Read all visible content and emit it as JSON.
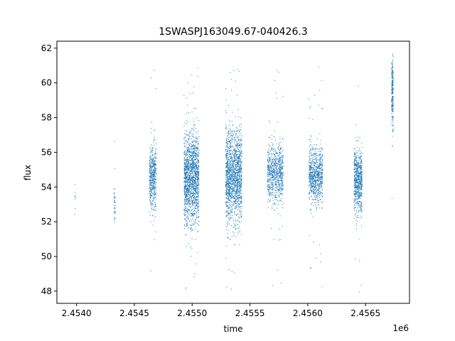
{
  "chart_data": {
    "type": "scatter",
    "title": "1SWASPJ163049.67-040426.3",
    "xlabel": "time",
    "ylabel": "flux",
    "x_offset_label": "1e6",
    "xlim": [
      2453830,
      2456880
    ],
    "ylim": [
      47.3,
      62.4
    ],
    "x_ticks": [
      2454000,
      2454500,
      2455000,
      2455500,
      2456000,
      2456500
    ],
    "x_tick_labels": [
      "2.4540",
      "2.4545",
      "2.4550",
      "2.4555",
      "2.4560",
      "2.4565"
    ],
    "y_ticks": [
      48,
      50,
      52,
      54,
      56,
      58,
      60,
      62
    ],
    "y_tick_labels": [
      "48",
      "50",
      "52",
      "54",
      "56",
      "58",
      "60",
      "62"
    ],
    "grid": false,
    "color": "#1f77b4",
    "season_clusters": [
      {
        "x_start": 2453985,
        "x_end": 2453990,
        "y_center": 53.8,
        "y_spread": 0.5,
        "count": 8
      },
      {
        "x_start": 2454325,
        "x_end": 2454335,
        "y_center": 53.0,
        "y_spread": 0.6,
        "count": 40
      },
      {
        "x_start": 2454630,
        "x_end": 2454690,
        "y_center": 54.6,
        "y_spread": 0.9,
        "count": 500
      },
      {
        "x_start": 2454930,
        "x_end": 2455060,
        "y_center": 54.5,
        "y_spread": 1.3,
        "count": 1600
      },
      {
        "x_start": 2455290,
        "x_end": 2455430,
        "y_center": 54.6,
        "y_spread": 1.3,
        "count": 1600
      },
      {
        "x_start": 2455650,
        "x_end": 2455790,
        "y_center": 54.8,
        "y_spread": 0.8,
        "count": 800
      },
      {
        "x_start": 2456010,
        "x_end": 2456130,
        "y_center": 54.7,
        "y_spread": 0.8,
        "count": 800
      },
      {
        "x_start": 2456400,
        "x_end": 2456470,
        "y_center": 54.4,
        "y_spread": 0.9,
        "count": 700
      },
      {
        "x_start": 2456725,
        "x_end": 2456740,
        "y_center": 59.5,
        "y_spread": 1.0,
        "count": 250
      }
    ]
  }
}
